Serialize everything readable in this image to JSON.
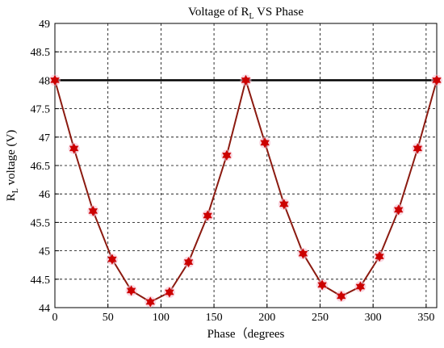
{
  "chart_data": {
    "type": "line",
    "title": {
      "prefix": "Voltage of R",
      "sub": "L",
      "suffix": " VS Phase"
    },
    "xlabel": "Phase（degrees",
    "ylabel": {
      "prefix": "R",
      "sub": "L",
      "suffix": " voltage (V)"
    },
    "xlim": [
      0,
      360
    ],
    "ylim": [
      44,
      49
    ],
    "xticks": [
      0,
      50,
      100,
      150,
      200,
      250,
      300,
      350
    ],
    "xtick_labels": [
      "0",
      "50",
      "100",
      "150",
      "200",
      "250",
      "300",
      "350"
    ],
    "yticks": [
      44,
      44.5,
      45,
      45.5,
      46,
      46.5,
      47,
      47.5,
      48,
      48.5,
      49
    ],
    "ytick_labels": [
      "44",
      "44.5",
      "45",
      "45.5",
      "46",
      "46.5",
      "47",
      "47.5",
      "48",
      "48.5",
      "49"
    ],
    "grid": true,
    "series": [
      {
        "color": "#cc0000",
        "line_color": "#8b1a10",
        "marker": "hexagram",
        "x": [
          0,
          18,
          36,
          54,
          72,
          90,
          108,
          126,
          144,
          162,
          180,
          198,
          216,
          234,
          252,
          270,
          288,
          306,
          324,
          342,
          360
        ],
        "y": [
          48.0,
          46.8,
          45.7,
          44.85,
          44.3,
          44.1,
          44.27,
          44.8,
          45.62,
          46.68,
          48.0,
          46.9,
          45.82,
          44.95,
          44.4,
          44.2,
          44.37,
          44.9,
          45.72,
          46.8,
          48.0
        ]
      },
      {
        "color": "#000000",
        "x": [
          0,
          360
        ],
        "y": [
          48,
          48
        ]
      }
    ]
  }
}
